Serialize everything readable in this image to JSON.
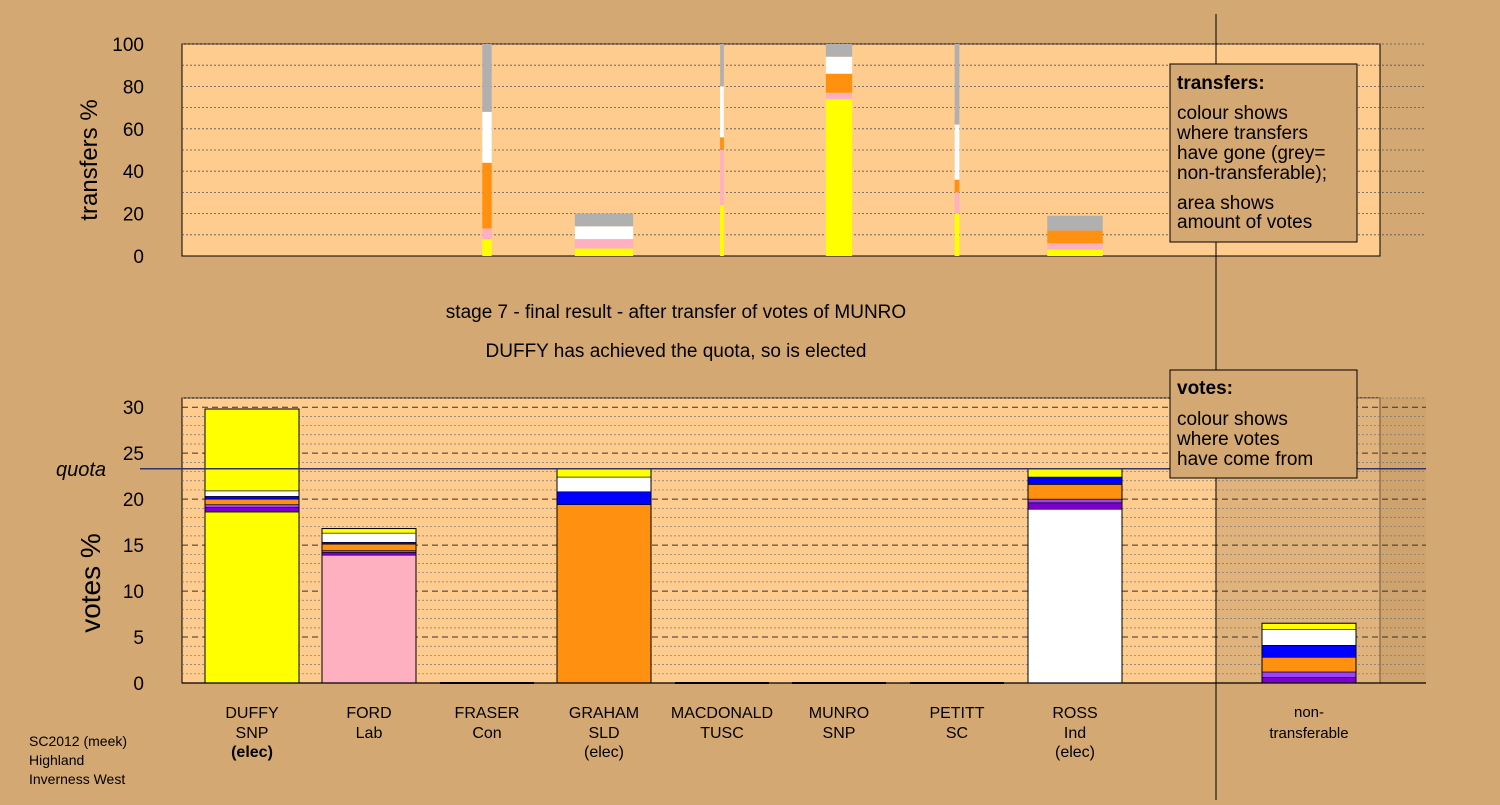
{
  "colors": {
    "page_bg": "#d4a872",
    "plot_bg": "#ffcc90",
    "nontransfer_bg": "#c89e6c",
    "quota_line": "#333366"
  },
  "text": {
    "stage_title": "stage 7 - final result - after transfer of votes of MUNRO",
    "stage_subtitle": "DUFFY has achieved the quota, so is elected",
    "quota_label": "quota",
    "footer": [
      "SC2012 (meek)",
      "Highland",
      "Inverness West"
    ],
    "transfers_box": {
      "title": "transfers:",
      "lines1": [
        "colour shows",
        "where transfers",
        "have gone (grey=",
        "non-transferable);"
      ],
      "lines2": [
        "area shows",
        "amount of votes"
      ]
    },
    "votes_box": {
      "title": "votes:",
      "lines": [
        "colour shows",
        "where votes",
        "have come from"
      ]
    }
  },
  "candidates": [
    {
      "name": "DUFFY",
      "party": "SNP",
      "status": "(elec)",
      "status_bold": true
    },
    {
      "name": "FORD",
      "party": "Lab",
      "status": ""
    },
    {
      "name": "FRASER",
      "party": "Con",
      "status": ""
    },
    {
      "name": "GRAHAM",
      "party": "SLD",
      "status": "(elec)"
    },
    {
      "name": "MACDONALD",
      "party": "TUSC",
      "status": ""
    },
    {
      "name": "MUNRO",
      "party": "SNP",
      "status": ""
    },
    {
      "name": "PETITT",
      "party": "SC",
      "status": ""
    },
    {
      "name": "ROSS",
      "party": "Ind",
      "status": "(elec)"
    },
    {
      "name": "non-",
      "party": "transferable",
      "status": ""
    }
  ],
  "chart_data": [
    {
      "type": "bar",
      "stacked": true,
      "ylabel": "transfers %",
      "ylim": [
        0,
        100
      ],
      "yticks": [
        0,
        20,
        40,
        60,
        80,
        100
      ],
      "grid": "dotted",
      "bars": [
        {
          "candidate": "FRASER",
          "width_share": 0.1,
          "segments": [
            {
              "color": "#ffff00",
              "value": 8
            },
            {
              "color": "#ffb0c0",
              "value": 5
            },
            {
              "color": "#ff9010",
              "value": 31
            },
            {
              "color": "#ffffff",
              "value": 24
            },
            {
              "color": "#b0b0b0",
              "value": 32
            }
          ]
        },
        {
          "candidate": "GRAHAM",
          "width_share": 0.62,
          "segments": [
            {
              "color": "#ffff00",
              "value": 3.5
            },
            {
              "color": "#ffb0c0",
              "value": 4.5
            },
            {
              "color": "#ffffff",
              "value": 6
            },
            {
              "color": "#b0b0b0",
              "value": 6
            }
          ]
        },
        {
          "candidate": "MACDONALD",
          "width_share": 0.04,
          "segments": [
            {
              "color": "#ffff00",
              "value": 24
            },
            {
              "color": "#ffb0c0",
              "value": 26
            },
            {
              "color": "#ff9010",
              "value": 6
            },
            {
              "color": "#ffffff",
              "value": 24
            },
            {
              "color": "#b0b0b0",
              "value": 20
            }
          ]
        },
        {
          "candidate": "MUNRO",
          "width_share": 0.28,
          "segments": [
            {
              "color": "#ffff00",
              "value": 74
            },
            {
              "color": "#ffb0c0",
              "value": 3
            },
            {
              "color": "#ff9010",
              "value": 9
            },
            {
              "color": "#ffffff",
              "value": 8
            },
            {
              "color": "#b0b0b0",
              "value": 6
            }
          ]
        },
        {
          "candidate": "PETITT",
          "width_share": 0.05,
          "segments": [
            {
              "color": "#ffff00",
              "value": 20
            },
            {
              "color": "#ffb0c0",
              "value": 10
            },
            {
              "color": "#ff9010",
              "value": 6
            },
            {
              "color": "#ffffff",
              "value": 26
            },
            {
              "color": "#b0b0b0",
              "value": 38
            }
          ]
        },
        {
          "candidate": "ROSS",
          "width_share": 0.59,
          "segments": [
            {
              "color": "#ffff00",
              "value": 3
            },
            {
              "color": "#ffb0c0",
              "value": 3
            },
            {
              "color": "#ff9010",
              "value": 6
            },
            {
              "color": "#b0b0b0",
              "value": 7
            }
          ]
        }
      ]
    },
    {
      "type": "bar",
      "stacked": true,
      "ylabel": "votes %",
      "ylim": [
        0,
        31
      ],
      "yticks": [
        0,
        5,
        10,
        15,
        20,
        25,
        30
      ],
      "quota": 23.3,
      "grid": "dashed",
      "bars": [
        {
          "candidate": "DUFFY",
          "segments": [
            {
              "color": "#ffff00",
              "value": 18.6
            },
            {
              "color": "#7b00cc",
              "value": 0.5
            },
            {
              "color": "#a040ff",
              "value": 0.3
            },
            {
              "color": "#ff9010",
              "value": 0.6
            },
            {
              "color": "#0000ff",
              "value": 0.3
            },
            {
              "color": "#ffffff",
              "value": 0.6
            },
            {
              "color": "#ffff00",
              "value": 8.9
            }
          ]
        },
        {
          "candidate": "FORD",
          "segments": [
            {
              "color": "#ffb0c0",
              "value": 13.9
            },
            {
              "color": "#7b00cc",
              "value": 0.3
            },
            {
              "color": "#a040ff",
              "value": 0.2
            },
            {
              "color": "#ff9010",
              "value": 0.7
            },
            {
              "color": "#0000ff",
              "value": 0.2
            },
            {
              "color": "#ffffff",
              "value": 1.0
            },
            {
              "color": "#ffff00",
              "value": 0.5
            }
          ]
        },
        {
          "candidate": "FRASER",
          "segments": []
        },
        {
          "candidate": "GRAHAM",
          "segments": [
            {
              "color": "#ff9010",
              "value": 19.4
            },
            {
              "color": "#0000ff",
              "value": 1.4
            },
            {
              "color": "#ffffff",
              "value": 1.6
            },
            {
              "color": "#ffff00",
              "value": 0.9
            }
          ]
        },
        {
          "candidate": "MACDONALD",
          "segments": []
        },
        {
          "candidate": "MUNRO",
          "segments": []
        },
        {
          "candidate": "PETITT",
          "segments": []
        },
        {
          "candidate": "ROSS",
          "segments": [
            {
              "color": "#ffffff",
              "value": 18.9
            },
            {
              "color": "#7b00cc",
              "value": 0.7
            },
            {
              "color": "#a040ff",
              "value": 0.4
            },
            {
              "color": "#ff9010",
              "value": 1.6
            },
            {
              "color": "#0000ff",
              "value": 0.8
            },
            {
              "color": "#ffff00",
              "value": 0.9
            }
          ]
        },
        {
          "candidate": "non-transferable",
          "segments": [
            {
              "color": "#7b00cc",
              "value": 0.6
            },
            {
              "color": "#a040ff",
              "value": 0.6
            },
            {
              "color": "#ff9010",
              "value": 1.6
            },
            {
              "color": "#0000ff",
              "value": 1.3
            },
            {
              "color": "#ffffff",
              "value": 1.7
            },
            {
              "color": "#ffff00",
              "value": 0.7
            }
          ]
        }
      ]
    }
  ]
}
